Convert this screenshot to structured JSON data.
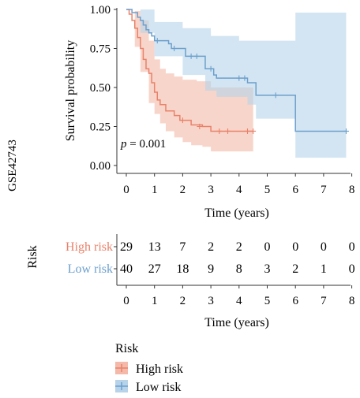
{
  "chart_data": [
    {
      "type": "line",
      "subtype": "kaplan-meier",
      "cohort_label": "GSE42743",
      "xlabel": "Time (years)",
      "ylabel": "Survival probability",
      "xlim": [
        0,
        8
      ],
      "ylim": [
        0,
        1
      ],
      "xticks": [
        "0",
        "1",
        "2",
        "3",
        "4",
        "5",
        "6",
        "7",
        "8"
      ],
      "yticks": [
        "0.00",
        "0.25",
        "0.50",
        "0.75",
        "1.00"
      ],
      "annotation": {
        "p_label": "p",
        "p_text": " = 0.001"
      },
      "colors": {
        "High risk": "#E8826A",
        "Low risk": "#6C9FCC",
        "High risk band": "#F4B9A8",
        "Low risk band": "#B6D3EA"
      },
      "series": [
        {
          "name": "High risk",
          "steps": [
            [
              0,
              1
            ],
            [
              0.1,
              0.97
            ],
            [
              0.2,
              0.93
            ],
            [
              0.3,
              0.88
            ],
            [
              0.4,
              0.82
            ],
            [
              0.5,
              0.75
            ],
            [
              0.6,
              0.68
            ],
            [
              0.7,
              0.62
            ],
            [
              0.8,
              0.59
            ],
            [
              0.9,
              0.53
            ],
            [
              1.0,
              0.47
            ],
            [
              1.1,
              0.42
            ],
            [
              1.2,
              0.39
            ],
            [
              1.4,
              0.35
            ],
            [
              1.7,
              0.32
            ],
            [
              1.9,
              0.29
            ],
            [
              2.3,
              0.26
            ],
            [
              2.7,
              0.25
            ],
            [
              3.0,
              0.22
            ],
            [
              4.5,
              0.22
            ]
          ],
          "censor": [
            [
              2.0,
              0.29
            ],
            [
              2.6,
              0.25
            ],
            [
              3.3,
              0.22
            ],
            [
              3.6,
              0.22
            ],
            [
              4.3,
              0.22
            ],
            [
              4.5,
              0.22
            ]
          ],
          "ci_upper": [
            [
              0,
              1
            ],
            [
              0.3,
              0.99
            ],
            [
              0.5,
              0.93
            ],
            [
              0.8,
              0.8
            ],
            [
              1.0,
              0.68
            ],
            [
              1.2,
              0.62
            ],
            [
              1.4,
              0.59
            ],
            [
              1.7,
              0.57
            ],
            [
              2.0,
              0.55
            ],
            [
              2.5,
              0.54
            ],
            [
              3.0,
              0.5
            ],
            [
              4.5,
              0.5
            ]
          ],
          "ci_lower": [
            [
              0,
              1
            ],
            [
              0.3,
              0.76
            ],
            [
              0.5,
              0.6
            ],
            [
              0.8,
              0.4
            ],
            [
              1.0,
              0.33
            ],
            [
              1.2,
              0.27
            ],
            [
              1.4,
              0.22
            ],
            [
              1.7,
              0.18
            ],
            [
              2.0,
              0.15
            ],
            [
              2.3,
              0.13
            ],
            [
              2.7,
              0.12
            ],
            [
              3.0,
              0.09
            ],
            [
              4.5,
              0.09
            ]
          ]
        },
        {
          "name": "Low risk",
          "steps": [
            [
              0,
              1
            ],
            [
              0.2,
              0.98
            ],
            [
              0.4,
              0.95
            ],
            [
              0.5,
              0.93
            ],
            [
              0.6,
              0.9
            ],
            [
              0.7,
              0.87
            ],
            [
              0.8,
              0.85
            ],
            [
              0.9,
              0.83
            ],
            [
              1.0,
              0.8
            ],
            [
              1.5,
              0.78
            ],
            [
              1.6,
              0.75
            ],
            [
              2.1,
              0.7
            ],
            [
              2.8,
              0.62
            ],
            [
              3.1,
              0.58
            ],
            [
              3.2,
              0.56
            ],
            [
              4.3,
              0.53
            ],
            [
              4.6,
              0.45
            ],
            [
              6.0,
              0.22
            ],
            [
              7.8,
              0.22
            ]
          ],
          "censor": [
            [
              1.1,
              0.8
            ],
            [
              1.7,
              0.75
            ],
            [
              2.3,
              0.7
            ],
            [
              2.5,
              0.7
            ],
            [
              3.0,
              0.62
            ],
            [
              4.0,
              0.56
            ],
            [
              4.2,
              0.56
            ],
            [
              5.3,
              0.45
            ],
            [
              7.8,
              0.22
            ]
          ],
          "ci_upper": [
            [
              0,
              1
            ],
            [
              1.0,
              0.92
            ],
            [
              2.0,
              0.88
            ],
            [
              3.0,
              0.83
            ],
            [
              4.0,
              0.8
            ],
            [
              4.5,
              0.8
            ],
            [
              6.0,
              0.98
            ],
            [
              7.8,
              0.98
            ]
          ],
          "ci_lower": [
            [
              0,
              1
            ],
            [
              0.5,
              0.85
            ],
            [
              1.0,
              0.7
            ],
            [
              2.0,
              0.58
            ],
            [
              2.8,
              0.48
            ],
            [
              3.2,
              0.44
            ],
            [
              4.3,
              0.39
            ],
            [
              4.6,
              0.3
            ],
            [
              6.0,
              0.05
            ],
            [
              7.8,
              0.05
            ]
          ]
        }
      ]
    },
    {
      "type": "table",
      "title": "Risk",
      "xlabel": "Time (years)",
      "x": [
        "0",
        "1",
        "2",
        "3",
        "4",
        "5",
        "6",
        "7",
        "8"
      ],
      "rows": [
        {
          "name": "High risk",
          "values": [
            "29",
            "13",
            "7",
            "2",
            "2",
            "0",
            "0",
            "0",
            "0"
          ]
        },
        {
          "name": "Low risk",
          "values": [
            "40",
            "27",
            "18",
            "9",
            "8",
            "3",
            "2",
            "1",
            "0"
          ]
        }
      ]
    }
  ],
  "legend": {
    "title": "Risk",
    "items": [
      {
        "label": "High risk",
        "color": "#E8826A"
      },
      {
        "label": "Low risk",
        "color": "#6C9FCC"
      }
    ]
  }
}
